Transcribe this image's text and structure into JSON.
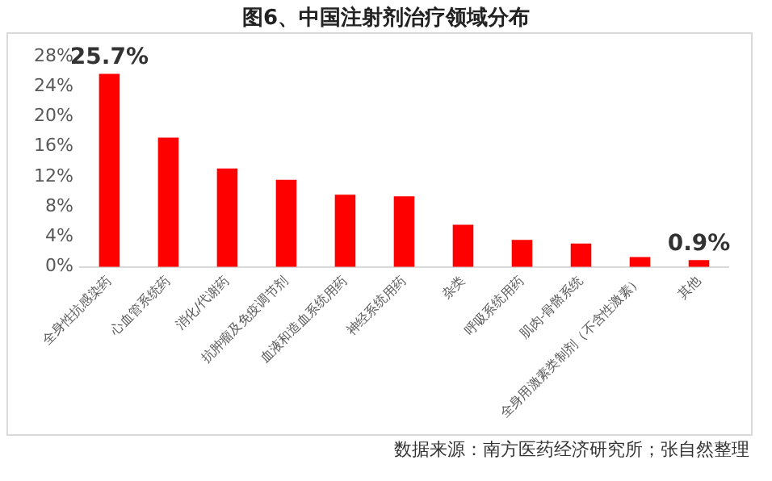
{
  "chart_data": {
    "type": "bar",
    "title": "图6、中国注射剂治疗领域分布",
    "categories": [
      "全身性抗感染药",
      "心血管系统药",
      "消化/代谢药",
      "抗肿瘤及免疫调节剂",
      "血液和造血系统用药",
      "神经系统用药",
      "杂类",
      "呼吸系统用药",
      "肌肉-骨骼系统",
      "全身用激素类制剂（不含性激素）",
      "其他"
    ],
    "values": [
      25.7,
      17.2,
      13.1,
      11.6,
      9.6,
      9.4,
      5.6,
      3.6,
      3.1,
      1.3,
      0.9
    ],
    "value_labels": [
      "25.7%",
      null,
      null,
      null,
      null,
      null,
      null,
      null,
      null,
      null,
      "0.9%"
    ],
    "color": "#ff0000",
    "ylim": [
      0,
      28
    ],
    "yticks": [
      {
        "value": 0,
        "label": "0%"
      },
      {
        "value": 4,
        "label": "4%"
      },
      {
        "value": 8,
        "label": "8%"
      },
      {
        "value": 12,
        "label": "12%"
      },
      {
        "value": 16,
        "label": "16%"
      },
      {
        "value": 20,
        "label": "20%"
      },
      {
        "value": 24,
        "label": "24%"
      },
      {
        "value": 28,
        "label": "28%"
      }
    ],
    "grid": false,
    "legend": false,
    "annotations": [
      "数据来源：南方医药经济研究所；张自然整理"
    ]
  }
}
